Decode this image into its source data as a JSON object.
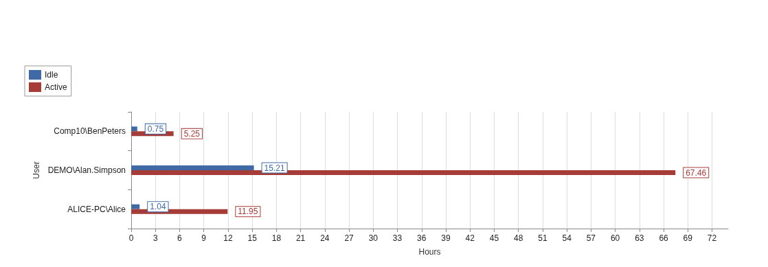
{
  "chart_data": {
    "type": "bar",
    "orientation": "horizontal",
    "categories": [
      "Comp10\\BenPeters",
      "DEMO\\Alan.Simpson",
      "ALICE-PC\\Alice"
    ],
    "series": [
      {
        "name": "Idle",
        "color": "#3f6aa5",
        "values": [
          0.75,
          15.21,
          1.04
        ]
      },
      {
        "name": "Active",
        "color": "#a63c38",
        "values": [
          5.25,
          67.46,
          11.95
        ]
      }
    ],
    "xlabel": "Hours",
    "ylabel": "User",
    "xlim": [
      0,
      74
    ],
    "xticks": [
      0,
      3,
      6,
      9,
      12,
      15,
      18,
      21,
      24,
      27,
      30,
      33,
      36,
      39,
      42,
      45,
      48,
      51,
      54,
      57,
      60,
      63,
      66,
      69,
      72
    ],
    "grid": "x",
    "legend": "top left",
    "data_labels": true
  }
}
